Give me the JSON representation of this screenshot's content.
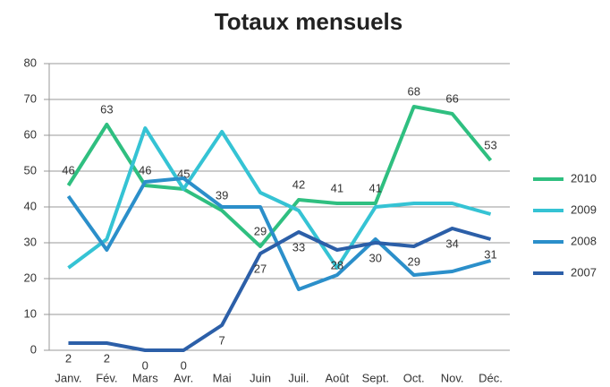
{
  "chart_data": {
    "type": "line",
    "title": "Totaux mensuels",
    "categories": [
      "Janv.",
      "Fév.",
      "Mars",
      "Avr.",
      "Mai",
      "Juin",
      "Juil.",
      "Août",
      "Sept.",
      "Oct.",
      "Nov.",
      "Déc."
    ],
    "series": [
      {
        "name": "2010",
        "color": "#2fbf80",
        "values": [
          46,
          63,
          46,
          45,
          39,
          29,
          42,
          41,
          41,
          68,
          66,
          53
        ],
        "data_labels": "above"
      },
      {
        "name": "2009",
        "color": "#35c3d4",
        "values": [
          23,
          31,
          62,
          45,
          61,
          44,
          39,
          23,
          40,
          41,
          41,
          38
        ]
      },
      {
        "name": "2008",
        "color": "#2b8fca",
        "values": [
          43,
          28,
          47,
          48,
          40,
          40,
          17,
          21,
          31,
          21,
          22,
          25
        ]
      },
      {
        "name": "2007",
        "color": "#2c5fa8",
        "values": [
          2,
          2,
          0,
          0,
          7,
          27,
          33,
          28,
          30,
          29,
          34,
          31
        ],
        "data_labels": "below"
      }
    ],
    "ylim": [
      0,
      80
    ],
    "yticks": [
      0,
      10,
      20,
      30,
      40,
      50,
      60,
      70,
      80
    ],
    "grid": true,
    "legend": "right"
  }
}
